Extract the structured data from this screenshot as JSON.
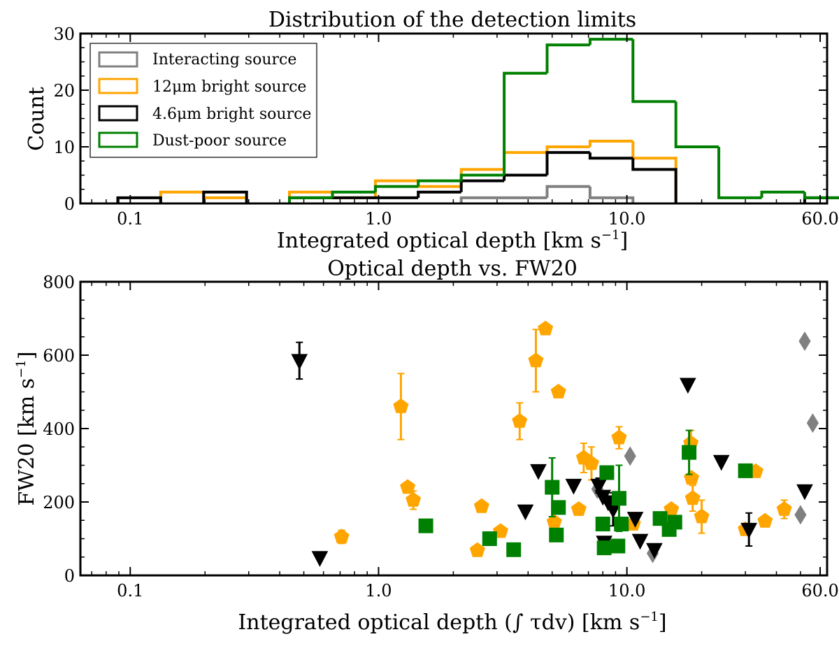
{
  "chart_data": [
    {
      "type": "histogram",
      "title": "Distribution of the detection limits",
      "xlabel": "Integrated optical depth [km s",
      "xlabel_sup": "−1",
      "xlabel_tail": "]",
      "ylabel": "Count",
      "xscale": "log",
      "xlim": [
        0.063,
        64
      ],
      "ylim": [
        0,
        30
      ],
      "xticks": [
        {
          "v": 0.1,
          "label": "0.1"
        },
        {
          "v": 1,
          "label": "1.0"
        },
        {
          "v": 10,
          "label": "10.0"
        },
        {
          "v": 60,
          "label": "60.0"
        }
      ],
      "yticks": [
        {
          "v": 0,
          "label": "0"
        },
        {
          "v": 10,
          "label": "10"
        },
        {
          "v": 20,
          "label": "20"
        },
        {
          "v": 30,
          "label": "30"
        }
      ],
      "legend_position": "top-left",
      "bin_edges": [
        0.0891,
        0.1326,
        0.1975,
        0.2941,
        0.4378,
        0.6519,
        0.9707,
        1.445,
        2.152,
        3.204,
        4.771,
        7.103,
        10.58,
        15.75,
        23.45,
        34.91,
        51.98,
        77.39
      ],
      "series": [
        {
          "name": "Interacting source",
          "color": "#808080",
          "counts": [
            0,
            0,
            0,
            0,
            0,
            0,
            0,
            0,
            1,
            1,
            3,
            1,
            0,
            0,
            0,
            0,
            0
          ]
        },
        {
          "name": "12μm bright source",
          "color": "#ffa500",
          "counts": [
            0,
            2,
            1,
            0,
            2,
            1,
            4,
            3,
            6,
            9,
            10,
            11,
            8,
            0,
            0,
            0,
            0
          ]
        },
        {
          "name": "4.6μm bright source",
          "color": "#000000",
          "counts": [
            1,
            0,
            2,
            0,
            1,
            1,
            1,
            2,
            4,
            5,
            9,
            8,
            6,
            0,
            0,
            0,
            1
          ]
        },
        {
          "name": "Dust-poor source",
          "color": "#008000",
          "counts": [
            0,
            0,
            0,
            0,
            1,
            2,
            3,
            4,
            5,
            23,
            28,
            29,
            18,
            10,
            1,
            2,
            1
          ]
        }
      ]
    },
    {
      "type": "scatter",
      "title": "Optical depth vs. FW20",
      "xlabel": "Integrated optical depth (∫ τdv) [km s",
      "xlabel_sup": "−1",
      "xlabel_tail": "]",
      "ylabel": "FW20 [km s",
      "ylabel_sup": "−1",
      "ylabel_tail": "]",
      "xscale": "log",
      "xlim": [
        0.063,
        64
      ],
      "ylim": [
        0,
        800
      ],
      "xticks": [
        {
          "v": 0.1,
          "label": "0.1"
        },
        {
          "v": 1,
          "label": "1.0"
        },
        {
          "v": 10,
          "label": "10.0"
        },
        {
          "v": 60,
          "label": "60.0"
        }
      ],
      "yticks": [
        {
          "v": 0,
          "label": "0"
        },
        {
          "v": 200,
          "label": "200"
        },
        {
          "v": 400,
          "label": "400"
        },
        {
          "v": 600,
          "label": "600"
        },
        {
          "v": 800,
          "label": "800"
        }
      ],
      "series": [
        {
          "name": "Interacting source",
          "color": "#808080",
          "marker": "diamond",
          "points": [
            [
              52.0,
              638
            ],
            [
              56.0,
              415
            ],
            [
              50.0,
              165
            ],
            [
              10.3,
              325
            ],
            [
              7.6,
              235
            ],
            [
              12.7,
              60
            ]
          ]
        },
        {
          "name": "12μm bright source",
          "color": "#ffa500",
          "marker": "pentagon",
          "points": [
            [
              0.71,
              105,
              18
            ],
            [
              1.23,
              460,
              90
            ],
            [
              1.31,
              240,
              0
            ],
            [
              1.38,
              205,
              25
            ],
            [
              2.6,
              188,
              0
            ],
            [
              2.5,
              68,
              0
            ],
            [
              3.1,
              120,
              0
            ],
            [
              3.7,
              420,
              50
            ],
            [
              4.3,
              585,
              85
            ],
            [
              4.7,
              672,
              0
            ],
            [
              5.3,
              500,
              0
            ],
            [
              5.1,
              145,
              0
            ],
            [
              6.4,
              180,
              0
            ],
            [
              6.7,
              320,
              40
            ],
            [
              7.2,
              305,
              45
            ],
            [
              9.3,
              375,
              30
            ],
            [
              10.6,
              140,
              0
            ],
            [
              15.1,
              180,
              0
            ],
            [
              18.1,
              360,
              35
            ],
            [
              18.2,
              265,
              0
            ],
            [
              18.4,
              210,
              35
            ],
            [
              20.0,
              160,
              45
            ],
            [
              30.0,
              125,
              0
            ],
            [
              33.0,
              283,
              0
            ],
            [
              36.0,
              148,
              0
            ],
            [
              43.0,
              180,
              25
            ]
          ]
        },
        {
          "name": "4.6μm bright source",
          "color": "#000000",
          "marker": "triangle-down",
          "points": [
            [
              0.48,
              585,
              50
            ],
            [
              0.58,
              48,
              0
            ],
            [
              3.9,
              175,
              0
            ],
            [
              4.4,
              285,
              0
            ],
            [
              6.1,
              245,
              0
            ],
            [
              7.7,
              245,
              20
            ],
            [
              8.0,
              215,
              0
            ],
            [
              8.1,
              90,
              0
            ],
            [
              8.4,
              200,
              0
            ],
            [
              8.8,
              180,
              45
            ],
            [
              10.8,
              155,
              0
            ],
            [
              11.3,
              95,
              0
            ],
            [
              12.9,
              70,
              0
            ],
            [
              17.6,
              520,
              0
            ],
            [
              24.0,
              310,
              0
            ],
            [
              31.0,
              125,
              45
            ],
            [
              52.0,
              230,
              0
            ]
          ]
        },
        {
          "name": "Dust-poor source",
          "color": "#008000",
          "marker": "square",
          "points": [
            [
              1.55,
              135,
              0
            ],
            [
              2.8,
              100,
              0
            ],
            [
              3.5,
              70,
              0
            ],
            [
              5.0,
              240,
              80
            ],
            [
              5.2,
              110,
              0
            ],
            [
              5.3,
              185,
              0
            ],
            [
              8.0,
              140,
              0
            ],
            [
              8.1,
              75,
              0
            ],
            [
              8.3,
              280,
              0
            ],
            [
              9.2,
              80,
              0
            ],
            [
              9.3,
              210,
              90
            ],
            [
              9.5,
              140,
              0
            ],
            [
              13.6,
              155,
              0
            ],
            [
              14.8,
              125,
              0
            ],
            [
              15.6,
              145,
              0
            ],
            [
              17.8,
              335,
              60
            ],
            [
              30.0,
              285,
              0
            ]
          ]
        }
      ]
    }
  ]
}
